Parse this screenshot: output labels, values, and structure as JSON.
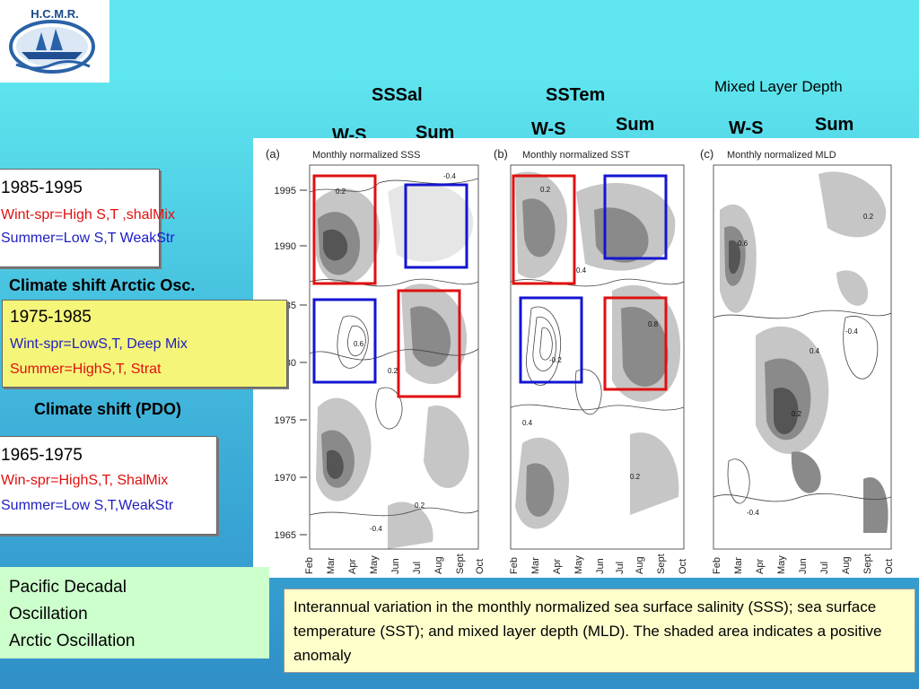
{
  "logo": {
    "text": "H.C.M.R."
  },
  "headers": {
    "sss": "SSSal",
    "sst": "SSTem",
    "mld": "Mixed Layer Depth",
    "ws": "W-S",
    "sum": "Sum"
  },
  "figure": {
    "panel_a_label": "(a)",
    "panel_b_label": "(b)",
    "panel_c_label": "(c)",
    "panel_a_title": "Monthly normalized SSS",
    "panel_b_title": "Monthly normalized SST",
    "panel_c_title": "Monthly normalized MLD",
    "years": [
      "1995",
      "1990",
      "1985",
      "1980",
      "1975",
      "1970",
      "1965"
    ],
    "months": [
      "Feb",
      "Mar",
      "Apr",
      "May",
      "Jun",
      "Jul",
      "Aug",
      "Sept",
      "Oct"
    ],
    "contour_labels": [
      "0.2",
      "-0.4",
      "0.6",
      "-0.2",
      "0.4",
      "0.8"
    ]
  },
  "periods": {
    "p1985": {
      "title": "1985-1995",
      "line1": "Wint-spr=High S,T ,shalMix",
      "line2a": "Summer=Low S,T ",
      "line2b": "WeakStr"
    },
    "shift_arctic": "Climate shift Arctic Osc.",
    "p1975": {
      "title": "1975-1985",
      "line1": "Wint-spr=LowS,T, Deep Mix",
      "line2": "Summer=HighS,T, Strat"
    },
    "shift_pdo": "Climate shift (PDO)",
    "p1965": {
      "title": "1965-1975",
      "line1": "Win-spr=HighS,T, ShalMix",
      "line2": "Summer=Low S,T,WeakStr"
    }
  },
  "legend_box": {
    "line1": "Pacific Decadal",
    "line2": "Oscillation",
    "line3": "Arctic Oscillation"
  },
  "caption": "Interannual variation in the monthly normalized sea surface salinity (SSS); sea surface temperature (SST); and mixed layer depth (MLD). The shaded area indicates a positive anomaly",
  "colors": {
    "red_box": "#e01010",
    "blue_box": "#1515d0",
    "shade_dark": "#555555",
    "shade_mid": "#8a8a8a",
    "shade_light": "#c6c6c6"
  }
}
